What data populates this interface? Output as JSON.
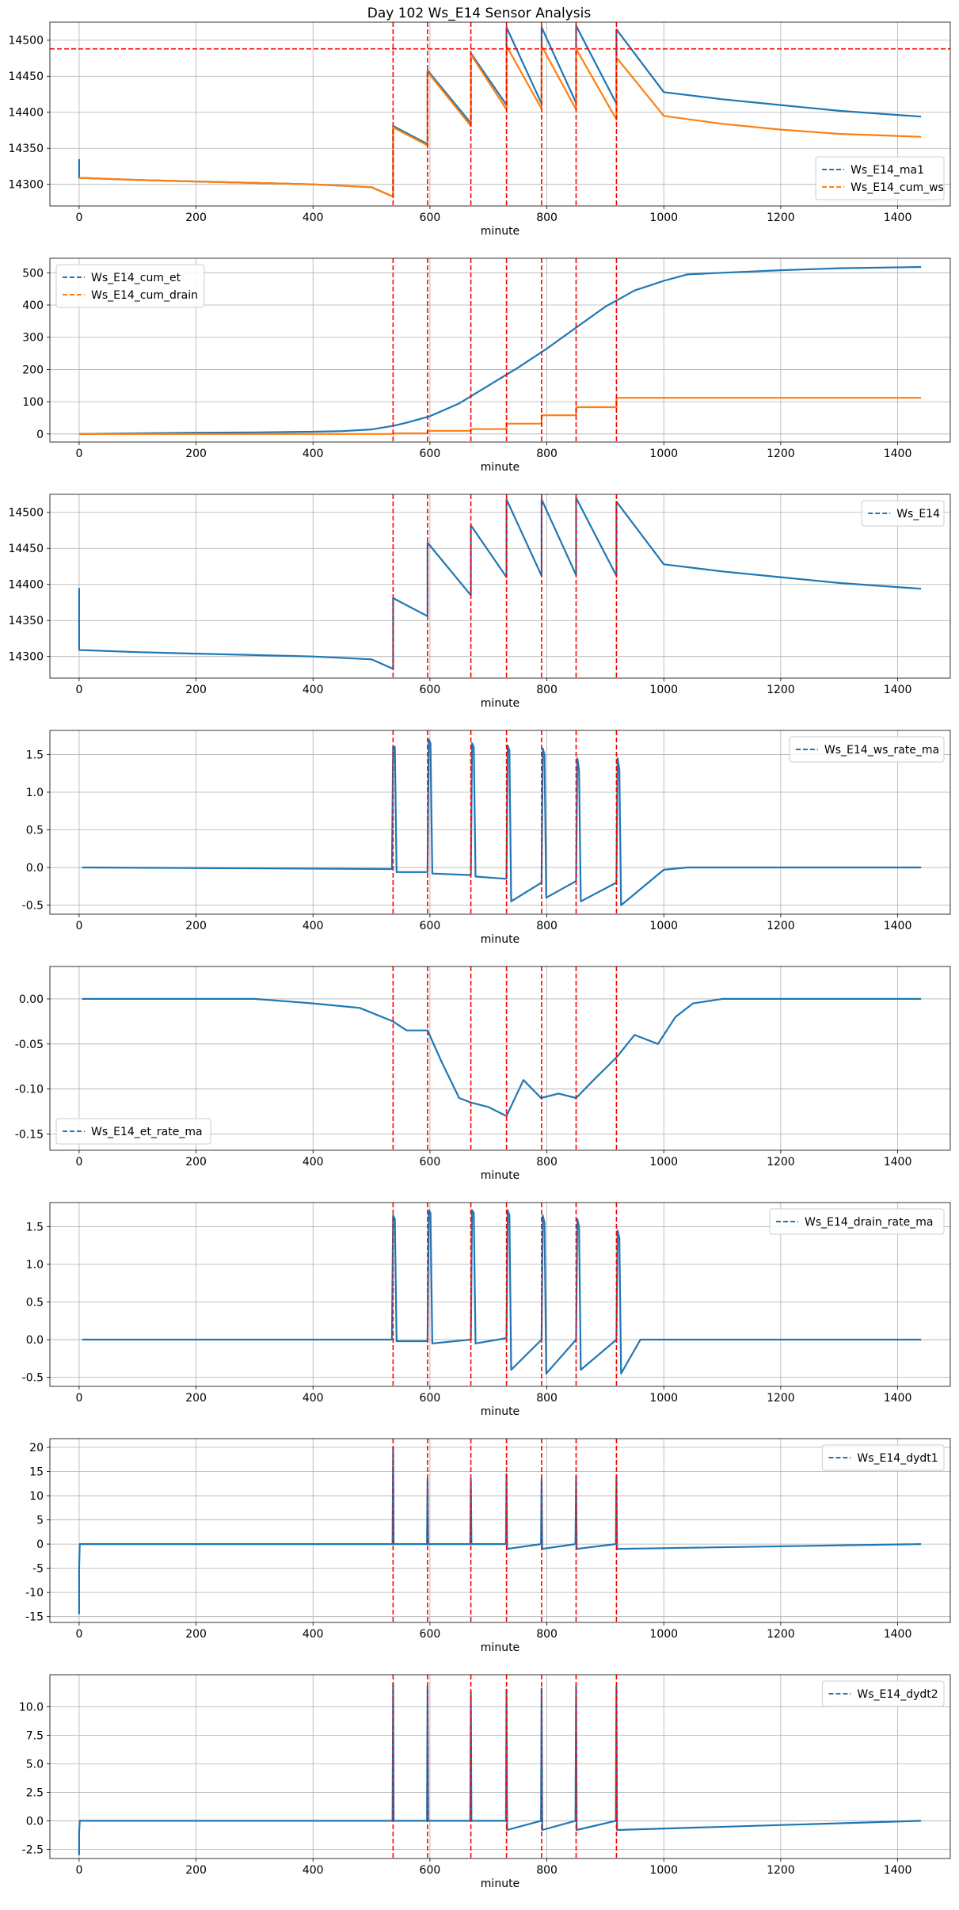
{
  "figure_title": "Day 102 Ws_E14 Sensor Analysis",
  "colors": {
    "series1": "#1f77b4",
    "series2": "#ff7f0e",
    "marker": "#ff0000",
    "grid": "#b0b0b0"
  },
  "chart_data": [
    {
      "type": "line",
      "xlabel": "minute",
      "xlim": [
        -50,
        1490
      ],
      "ylim": [
        14270,
        14525
      ],
      "xticks": [
        0,
        200,
        400,
        600,
        800,
        1000,
        1200,
        1400
      ],
      "yticks": [
        14300,
        14350,
        14400,
        14450,
        14500
      ],
      "grid": true,
      "legend_position": "lower-right",
      "hlines": [
        14488
      ],
      "vlines": [
        537,
        596,
        670,
        731,
        791,
        850,
        919
      ],
      "series": [
        {
          "name": "Ws_E14_ma1",
          "color": "#1f77b4",
          "x": [
            0,
            0,
            0,
            100,
            200,
            300,
            400,
            500,
            537,
            537,
            596,
            596,
            670,
            670,
            731,
            731,
            791,
            791,
            850,
            850,
            919,
            919,
            1000,
            1100,
            1200,
            1300,
            1440
          ],
          "y": [
            14335,
            14311,
            14309,
            14306,
            14304,
            14302,
            14300,
            14296,
            14283,
            14381,
            14356,
            14458,
            14385,
            14482,
            14410,
            14518,
            14412,
            14518,
            14413,
            14520,
            14412,
            14515,
            14428,
            14418,
            14410,
            14402,
            14394
          ]
        },
        {
          "name": "Ws_E14_cum_ws",
          "color": "#ff7f0e",
          "x": [
            0,
            100,
            200,
            300,
            400,
            500,
            537,
            537,
            596,
            596,
            670,
            670,
            731,
            731,
            791,
            791,
            850,
            850,
            919,
            919,
            1000,
            1100,
            1200,
            1300,
            1440
          ],
          "y": [
            14309,
            14306,
            14304,
            14302,
            14300,
            14296,
            14283,
            14379,
            14354,
            14456,
            14381,
            14480,
            14404,
            14492,
            14405,
            14492,
            14404,
            14488,
            14390,
            14476,
            14395,
            14384,
            14376,
            14370,
            14366
          ]
        }
      ]
    },
    {
      "type": "line",
      "xlabel": "minute",
      "xlim": [
        -50,
        1490
      ],
      "ylim": [
        -25,
        545
      ],
      "xticks": [
        0,
        200,
        400,
        600,
        800,
        1000,
        1200,
        1400
      ],
      "yticks": [
        0,
        100,
        200,
        300,
        400,
        500
      ],
      "grid": true,
      "legend_position": "upper-left",
      "vlines": [
        537,
        596,
        670,
        731,
        791,
        850,
        919
      ],
      "series": [
        {
          "name": "Ws_E14_cum_et",
          "color": "#1f77b4",
          "x": [
            0,
            100,
            200,
            300,
            400,
            450,
            500,
            537,
            560,
            600,
            650,
            700,
            750,
            800,
            850,
            900,
            950,
            1000,
            1040,
            1100,
            1200,
            1300,
            1440
          ],
          "y": [
            0,
            2,
            4,
            5,
            7,
            9,
            14,
            25,
            35,
            55,
            95,
            150,
            205,
            265,
            330,
            395,
            445,
            475,
            495,
            500,
            508,
            514,
            518
          ]
        },
        {
          "name": "Ws_E14_cum_drain",
          "color": "#ff7f0e",
          "x": [
            0,
            537,
            537,
            596,
            596,
            670,
            670,
            731,
            731,
            791,
            791,
            850,
            850,
            919,
            919,
            1000,
            1440
          ],
          "y": [
            0,
            0,
            2,
            2,
            10,
            10,
            15,
            15,
            32,
            32,
            58,
            58,
            83,
            83,
            112,
            112,
            112
          ]
        }
      ]
    },
    {
      "type": "line",
      "xlabel": "minute",
      "xlim": [
        -50,
        1490
      ],
      "ylim": [
        14270,
        14525
      ],
      "xticks": [
        0,
        200,
        400,
        600,
        800,
        1000,
        1200,
        1400
      ],
      "yticks": [
        14300,
        14350,
        14400,
        14450,
        14500
      ],
      "grid": true,
      "legend_position": "upper-right",
      "vlines": [
        537,
        596,
        670,
        731,
        791,
        850,
        919
      ],
      "series": [
        {
          "name": "Ws_E14",
          "color": "#1f77b4",
          "x": [
            0,
            0,
            0,
            100,
            200,
            300,
            400,
            500,
            537,
            537,
            596,
            596,
            670,
            670,
            731,
            731,
            791,
            791,
            850,
            850,
            919,
            919,
            1000,
            1100,
            1200,
            1300,
            1440
          ],
          "y": [
            14395,
            14311,
            14309,
            14306,
            14304,
            14302,
            14300,
            14296,
            14283,
            14381,
            14356,
            14458,
            14385,
            14482,
            14410,
            14518,
            14412,
            14518,
            14413,
            14520,
            14412,
            14515,
            14428,
            14418,
            14410,
            14402,
            14394
          ]
        }
      ]
    },
    {
      "type": "line",
      "xlabel": "minute",
      "xlim": [
        -50,
        1490
      ],
      "ylim": [
        -0.62,
        1.82
      ],
      "xticks": [
        0,
        200,
        400,
        600,
        800,
        1000,
        1200,
        1400
      ],
      "yticks": [
        -0.5,
        0.0,
        0.5,
        1.0,
        1.5
      ],
      "grid": true,
      "legend_position": "upper-right",
      "vlines": [
        537,
        596,
        670,
        731,
        791,
        850,
        919
      ],
      "series": [
        {
          "name": "Ws_E14_ws_rate_ma",
          "color": "#1f77b4",
          "x": [
            5,
            535,
            537,
            540,
            543,
            596,
            598,
            601,
            604,
            670,
            672,
            675,
            678,
            731,
            733,
            736,
            739,
            791,
            793,
            796,
            799,
            850,
            852,
            855,
            858,
            919,
            921,
            924,
            927,
            1000,
            1040,
            1045,
            1440
          ],
          "y": [
            0,
            -0.02,
            1.6,
            1.6,
            -0.06,
            -0.06,
            1.7,
            1.65,
            -0.08,
            -0.1,
            1.65,
            1.6,
            -0.12,
            -0.15,
            1.62,
            1.55,
            -0.45,
            -0.2,
            1.58,
            1.5,
            -0.4,
            -0.18,
            1.45,
            1.3,
            -0.45,
            -0.2,
            1.45,
            1.3,
            -0.5,
            -0.03,
            0,
            0,
            0
          ]
        }
      ]
    },
    {
      "type": "line",
      "xlabel": "minute",
      "xlim": [
        -50,
        1490
      ],
      "ylim": [
        -0.168,
        0.036
      ],
      "xticks": [
        0,
        200,
        400,
        600,
        800,
        1000,
        1200,
        1400
      ],
      "yticks": [
        -0.15,
        -0.1,
        -0.05,
        0.0
      ],
      "grid": true,
      "legend_position": "lower-left",
      "vlines": [
        537,
        596,
        670,
        731,
        791,
        850,
        919
      ],
      "series": [
        {
          "name": "Ws_E14_et_rate_ma",
          "color": "#1f77b4",
          "x": [
            5,
            100,
            200,
            300,
            400,
            480,
            537,
            560,
            596,
            620,
            650,
            670,
            700,
            731,
            760,
            790,
            820,
            850,
            880,
            919,
            950,
            990,
            1020,
            1050,
            1100,
            1200,
            1300,
            1440
          ],
          "y": [
            0,
            0,
            0,
            0,
            -0.005,
            -0.01,
            -0.025,
            -0.035,
            -0.035,
            -0.07,
            -0.11,
            -0.115,
            -0.12,
            -0.13,
            -0.09,
            -0.11,
            -0.105,
            -0.11,
            -0.09,
            -0.065,
            -0.04,
            -0.05,
            -0.02,
            -0.005,
            0,
            0,
            0,
            0
          ]
        }
      ]
    },
    {
      "type": "line",
      "xlabel": "minute",
      "xlim": [
        -50,
        1490
      ],
      "ylim": [
        -0.62,
        1.82
      ],
      "xticks": [
        0,
        200,
        400,
        600,
        800,
        1000,
        1200,
        1400
      ],
      "yticks": [
        -0.5,
        0.0,
        0.5,
        1.0,
        1.5
      ],
      "grid": true,
      "legend_position": "upper-right",
      "vlines": [
        537,
        596,
        670,
        731,
        791,
        850,
        919
      ],
      "series": [
        {
          "name": "Ws_E14_drain_rate_ma",
          "color": "#1f77b4",
          "x": [
            5,
            535,
            537,
            540,
            543,
            596,
            598,
            601,
            604,
            670,
            672,
            675,
            678,
            731,
            733,
            736,
            739,
            791,
            793,
            796,
            799,
            850,
            852,
            855,
            858,
            919,
            921,
            924,
            927,
            960,
            1040,
            1045,
            1440
          ],
          "y": [
            0,
            0,
            1.65,
            1.6,
            -0.02,
            -0.02,
            1.72,
            1.68,
            -0.05,
            0,
            1.72,
            1.68,
            -0.05,
            0.02,
            1.72,
            1.65,
            -0.4,
            0,
            1.65,
            1.55,
            -0.45,
            0,
            1.6,
            1.5,
            -0.4,
            0,
            1.45,
            1.35,
            -0.45,
            0,
            0,
            0,
            0
          ]
        }
      ]
    },
    {
      "type": "line",
      "xlabel": "minute",
      "xlim": [
        -50,
        1490
      ],
      "ylim": [
        -16.2,
        21.8
      ],
      "xticks": [
        0,
        200,
        400,
        600,
        800,
        1000,
        1200,
        1400
      ],
      "yticks": [
        -15,
        -10,
        -5,
        0,
        5,
        10,
        15,
        20
      ],
      "grid": true,
      "legend_position": "upper-right",
      "vlines": [
        537,
        596,
        670,
        731,
        791,
        850,
        919
      ],
      "series": [
        {
          "name": "Ws_E14_dydt1",
          "color": "#1f77b4",
          "x": [
            0,
            0,
            1,
            536,
            537,
            538,
            595,
            596,
            597,
            669,
            670,
            671,
            730,
            731,
            732,
            790,
            791,
            792,
            849,
            850,
            851,
            918,
            919,
            920,
            1440
          ],
          "y": [
            -14.5,
            -5,
            0,
            0,
            20,
            0,
            0,
            13.5,
            0,
            0,
            13.5,
            0,
            0,
            14.5,
            -1,
            0,
            13.5,
            -1,
            0,
            14,
            -1,
            0,
            14,
            -1,
            0
          ]
        }
      ]
    },
    {
      "type": "line",
      "xlabel": "minute",
      "xlim": [
        -50,
        1490
      ],
      "ylim": [
        -3.3,
        12.8
      ],
      "xticks": [
        0,
        200,
        400,
        600,
        800,
        1000,
        1200,
        1400
      ],
      "yticks": [
        -2.5,
        0.0,
        2.5,
        5.0,
        7.5,
        10.0
      ],
      "grid": true,
      "legend_position": "upper-right",
      "vlines": [
        537,
        596,
        670,
        731,
        791,
        850,
        919
      ],
      "series": [
        {
          "name": "Ws_E14_dydt2",
          "color": "#1f77b4",
          "x": [
            0,
            0,
            1,
            536,
            537,
            538,
            595,
            596,
            597,
            669,
            670,
            671,
            730,
            731,
            732,
            790,
            791,
            792,
            849,
            850,
            851,
            918,
            919,
            920,
            1440
          ],
          "y": [
            -3,
            -1,
            0,
            0,
            12,
            0,
            0,
            11.8,
            0,
            0,
            11.3,
            0,
            0,
            11.5,
            -0.8,
            0,
            11.6,
            -0.8,
            0,
            11.8,
            -0.8,
            0,
            11.8,
            -0.8,
            0
          ]
        }
      ]
    }
  ]
}
